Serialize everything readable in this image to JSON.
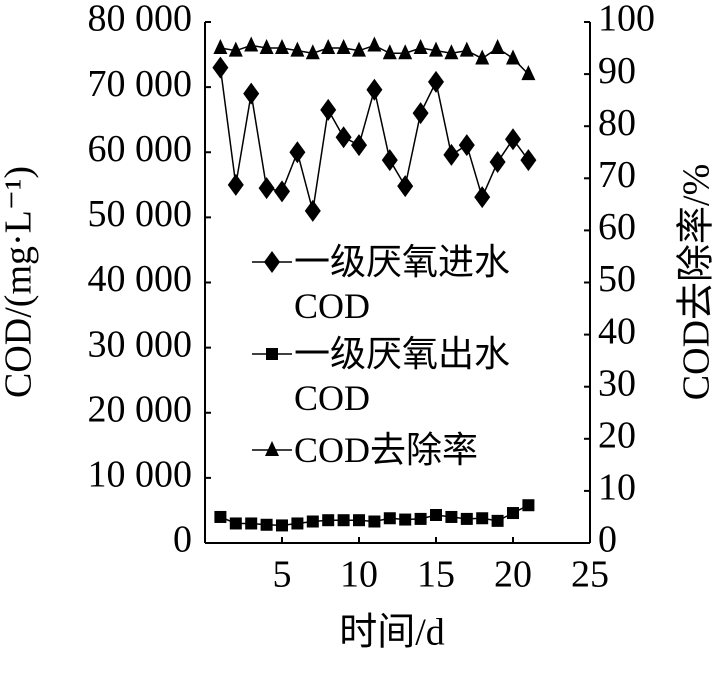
{
  "chart_data": {
    "type": "line",
    "x": [
      1,
      2,
      3,
      4,
      5,
      6,
      7,
      8,
      9,
      10,
      11,
      12,
      13,
      14,
      15,
      16,
      17,
      18,
      19,
      20,
      21
    ],
    "series": [
      {
        "name": "一级厌氧进水COD",
        "color": "#000000",
        "marker": "diamond",
        "axis": "y",
        "values": [
          73000,
          55000,
          69000,
          54500,
          54000,
          60000,
          51000,
          66500,
          62300,
          61100,
          69600,
          58800,
          54800,
          66000,
          70800,
          59600,
          61100,
          53100,
          58500,
          62000,
          58800
        ]
      },
      {
        "name": "一级厌氧出水COD",
        "color": "#000000",
        "marker": "square",
        "axis": "y",
        "values": [
          4000,
          3000,
          3000,
          2800,
          2700,
          3000,
          3300,
          3500,
          3500,
          3500,
          3300,
          3800,
          3600,
          3700,
          4300,
          4000,
          3700,
          3800,
          3400,
          4600,
          5800
        ]
      },
      {
        "name": "COD去除率",
        "color": "#000000",
        "marker": "triangle",
        "axis": "y2",
        "values": [
          95,
          94.5,
          95.5,
          95,
          95,
          94.5,
          94,
          95,
          95,
          94.5,
          95.5,
          94,
          94,
          95,
          94.5,
          94,
          94.5,
          93,
          95,
          93,
          90
        ]
      }
    ],
    "x_label": "时间/d",
    "y_label": "COD/(mg·L⁻¹)",
    "y2_label": "COD去除率/%",
    "xlim": [
      0,
      25
    ],
    "xticks": [
      5,
      10,
      15,
      20,
      25
    ],
    "ylim": [
      0,
      80000
    ],
    "yticks": [
      0,
      {
        "value": 10000,
        "label": "10 000"
      },
      {
        "value": 20000,
        "label": "20 000"
      },
      {
        "value": 30000,
        "label": "30 000"
      },
      {
        "value": 40000,
        "label": "40 000"
      },
      {
        "value": 50000,
        "label": "50 000"
      },
      {
        "value": 60000,
        "label": "60 000"
      },
      {
        "value": 70000,
        "label": "70 000"
      },
      {
        "value": 80000,
        "label": "80 000"
      }
    ],
    "y2lim": [
      0,
      100
    ],
    "y2ticks": [
      0,
      10,
      20,
      30,
      40,
      50,
      60,
      70,
      80,
      90,
      100
    ]
  }
}
